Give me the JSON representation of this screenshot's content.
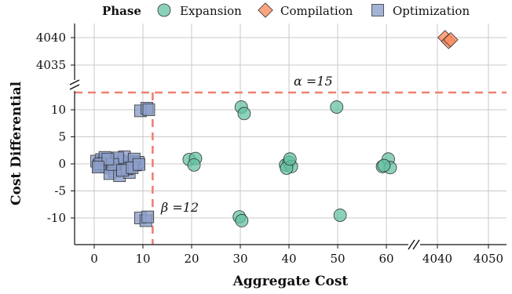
{
  "chart_data": {
    "type": "scatter",
    "xlabel": "Aggregate Cost",
    "ylabel": "Cost Differential",
    "x_axis": {
      "broken": true,
      "segments": [
        {
          "range": [
            -2,
            65
          ],
          "ticks": [
            0,
            10,
            20,
            30,
            40,
            50,
            60
          ]
        },
        {
          "range": [
            4035,
            4054
          ],
          "ticks": [
            4040,
            4050
          ]
        }
      ]
    },
    "y_axis": {
      "broken": true,
      "segments": [
        {
          "range": [
            -15,
            13
          ],
          "ticks": [
            -10,
            -5,
            0,
            5,
            10
          ]
        },
        {
          "range": [
            4032,
            4043
          ],
          "ticks": [
            4035,
            4040
          ]
        }
      ]
    },
    "legend": {
      "title": "Phase",
      "placement": "top",
      "entries": [
        "Expansion",
        "Compilation",
        "Optimization"
      ]
    },
    "grid": true,
    "series": [
      {
        "name": "Expansion",
        "marker": "circle",
        "color": "#66c2a5",
        "points": [
          [
            19.5,
            0.8
          ],
          [
            20.8,
            1.0
          ],
          [
            20.5,
            -0.2
          ],
          [
            30.2,
            10.5
          ],
          [
            30.8,
            9.3
          ],
          [
            29.8,
            -9.8
          ],
          [
            30.3,
            -10.5
          ],
          [
            39.3,
            -0.2
          ],
          [
            40.0,
            0.3
          ],
          [
            40.5,
            -0.5
          ],
          [
            39.5,
            -0.8
          ],
          [
            40.2,
            0.9
          ],
          [
            49.8,
            10.5
          ],
          [
            50.5,
            -9.5
          ],
          [
            59.2,
            -0.5
          ],
          [
            60.4,
            0.9
          ],
          [
            60.8,
            -0.7
          ],
          [
            59.5,
            -0.3
          ]
        ]
      },
      {
        "name": "Compilation",
        "marker": "diamond",
        "color": "#fc8d62",
        "points": [
          [
            4041.5,
            4040.0
          ],
          [
            4042.2,
            4039.3
          ],
          [
            4042.6,
            4039.6
          ]
        ]
      },
      {
        "name": "Optimization",
        "marker": "square",
        "color": "#8da0cb",
        "points": [
          [
            9.5,
            9.8
          ],
          [
            10.8,
            10.3
          ],
          [
            11.2,
            10.0
          ],
          [
            9.5,
            -10.0
          ],
          [
            10.6,
            -10.5
          ],
          [
            11.0,
            -9.8
          ],
          [
            0.5,
            0.5
          ],
          [
            1.0,
            -0.3
          ],
          [
            1.5,
            0.8
          ],
          [
            2.0,
            0.2
          ],
          [
            2.5,
            -0.5
          ],
          [
            3.0,
            0.6
          ],
          [
            3.5,
            -0.8
          ],
          [
            4.0,
            0.3
          ],
          [
            4.5,
            -0.2
          ],
          [
            5.0,
            0.7
          ],
          [
            5.5,
            -0.6
          ],
          [
            6.0,
            0.4
          ],
          [
            6.5,
            -1.0
          ],
          [
            7.0,
            0.1
          ],
          [
            7.5,
            -0.4
          ],
          [
            8.0,
            0.5
          ],
          [
            8.5,
            -0.2
          ],
          [
            9.0,
            0.3
          ],
          [
            2.2,
            1.2
          ],
          [
            4.2,
            -1.4
          ],
          [
            6.2,
            1.3
          ],
          [
            3.2,
            -1.8
          ],
          [
            5.2,
            -2.2
          ],
          [
            7.2,
            -1.6
          ],
          [
            1.2,
            0.0
          ],
          [
            8.2,
            0.9
          ],
          [
            6.8,
            -0.9
          ],
          [
            4.8,
            1.1
          ],
          [
            3.8,
            -0.1
          ],
          [
            5.8,
            -1.2
          ],
          [
            2.8,
            0.9
          ],
          [
            7.8,
            -0.7
          ],
          [
            0.8,
            -0.6
          ],
          [
            9.2,
            -0.1
          ]
        ]
      }
    ],
    "reference_lines": [
      {
        "orientation": "horizontal",
        "label": "α =15",
        "color": "#f08070"
      },
      {
        "orientation": "vertical",
        "value": 12,
        "label": "β =12",
        "color": "#f08070"
      }
    ]
  }
}
